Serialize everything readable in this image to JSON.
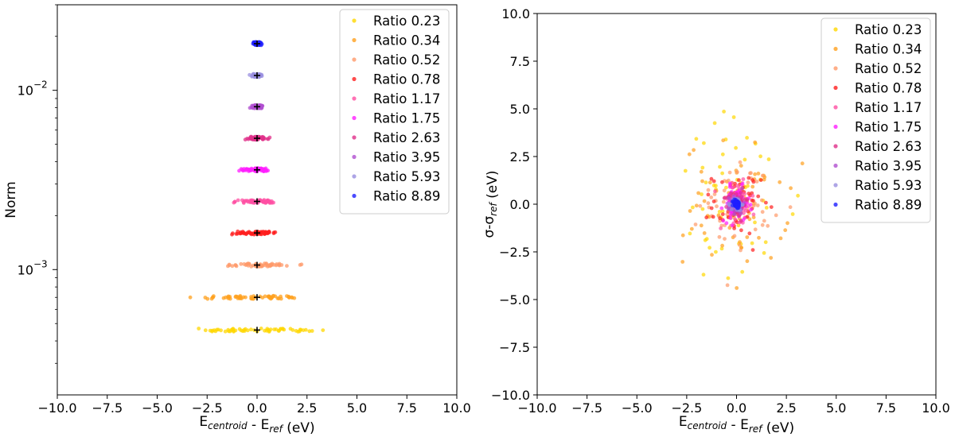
{
  "chart_data": [
    {
      "type": "scatter",
      "xlim": [
        -10,
        10
      ],
      "ylim": [
        0.0002,
        0.03
      ],
      "yscale": "log",
      "xticks": [
        -10,
        -7.5,
        -5,
        -2.5,
        0,
        2.5,
        5,
        7.5,
        10
      ],
      "xtick_labels": [
        "−10.0",
        "−7.5",
        "−5.0",
        "−2.5",
        "0.0",
        "2.5",
        "5.0",
        "7.5",
        "10.0"
      ],
      "ytick_labels": [
        {
          "base": "10",
          "exp": "−2",
          "value": 0.01
        },
        {
          "base": "10",
          "exp": "−3",
          "value": 0.001
        }
      ],
      "xlabel": {
        "main": "E",
        "sub": "centroid",
        "mid": " - E",
        "sub2": "ref",
        "tail": " (eV)"
      },
      "ylabel": "Norm",
      "legend_position": "top-right",
      "series": [
        {
          "name": "Ratio 0.23",
          "color": "#FFD700",
          "norm": 0.00046,
          "spread": 1.6
        },
        {
          "name": "Ratio 0.34",
          "color": "#FFA01E",
          "norm": 0.0007,
          "spread": 1.3
        },
        {
          "name": "Ratio 0.52",
          "color": "#FF9A6A",
          "norm": 0.00106,
          "spread": 0.9
        },
        {
          "name": "Ratio 0.78",
          "color": "#FF1E1E",
          "norm": 0.0016,
          "spread": 0.6
        },
        {
          "name": "Ratio 1.17",
          "color": "#FF4FA3",
          "norm": 0.0024,
          "spread": 0.45
        },
        {
          "name": "Ratio 1.75",
          "color": "#FF1EFF",
          "norm": 0.0036,
          "spread": 0.32
        },
        {
          "name": "Ratio 2.63",
          "color": "#E0308A",
          "norm": 0.0054,
          "spread": 0.24
        },
        {
          "name": "Ratio 3.95",
          "color": "#B04FD0",
          "norm": 0.0081,
          "spread": 0.17
        },
        {
          "name": "Ratio 5.93",
          "color": "#9A8FE0",
          "norm": 0.0121,
          "spread": 0.13
        },
        {
          "name": "Ratio 8.89",
          "color": "#1E1EFF",
          "norm": 0.0182,
          "spread": 0.09
        }
      ]
    },
    {
      "type": "scatter",
      "xlim": [
        -10,
        10
      ],
      "ylim": [
        -10,
        10
      ],
      "xticks": [
        -10,
        -7.5,
        -5,
        -2.5,
        0,
        2.5,
        5,
        7.5,
        10
      ],
      "xtick_labels": [
        "−10.0",
        "−7.5",
        "−5.0",
        "−2.5",
        "0.0",
        "2.5",
        "5.0",
        "7.5",
        "10.0"
      ],
      "yticks": [
        -10,
        -7.5,
        -5,
        -2.5,
        0,
        2.5,
        5,
        7.5,
        10
      ],
      "ytick_labels": [
        "−10.0",
        "−7.5",
        "−5.0",
        "−2.5",
        "0.0",
        "2.5",
        "5.0",
        "7.5",
        "10.0"
      ],
      "xlabel": {
        "main": "E",
        "sub": "centroid",
        "mid": " - E",
        "sub2": "ref",
        "tail": " (eV)"
      },
      "ylabel": {
        "main": "σ-σ",
        "sub": "ref",
        "tail": " (eV)"
      },
      "legend_position": "top-right",
      "series": [
        {
          "name": "Ratio 0.23",
          "color": "#FFD700",
          "spread_x": 1.6,
          "spread_y": 2.3
        },
        {
          "name": "Ratio 0.34",
          "color": "#FFA01E",
          "spread_x": 1.3,
          "spread_y": 1.6
        },
        {
          "name": "Ratio 0.52",
          "color": "#FF9A6A",
          "spread_x": 0.9,
          "spread_y": 1.1
        },
        {
          "name": "Ratio 0.78",
          "color": "#FF1E1E",
          "spread_x": 0.6,
          "spread_y": 0.8
        },
        {
          "name": "Ratio 1.17",
          "color": "#FF4FA3",
          "spread_x": 0.45,
          "spread_y": 0.6
        },
        {
          "name": "Ratio 1.75",
          "color": "#FF1EFF",
          "spread_x": 0.32,
          "spread_y": 0.45
        },
        {
          "name": "Ratio 2.63",
          "color": "#E0308A",
          "spread_x": 0.24,
          "spread_y": 0.33
        },
        {
          "name": "Ratio 3.95",
          "color": "#B04FD0",
          "spread_x": 0.17,
          "spread_y": 0.24
        },
        {
          "name": "Ratio 5.93",
          "color": "#9A8FE0",
          "spread_x": 0.13,
          "spread_y": 0.17
        },
        {
          "name": "Ratio 8.89",
          "color": "#1E1EFF",
          "spread_x": 0.09,
          "spread_y": 0.12
        }
      ]
    }
  ]
}
